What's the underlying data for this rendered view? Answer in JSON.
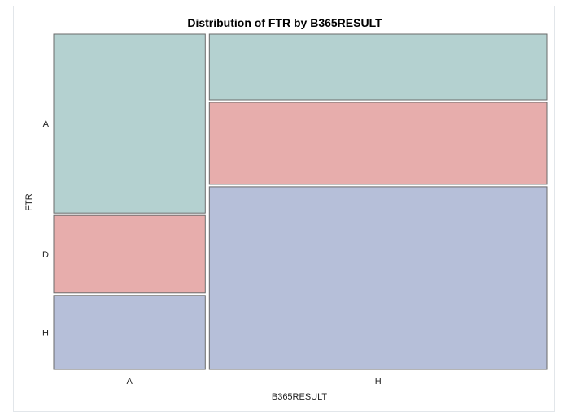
{
  "chart_data": {
    "type": "mosaic",
    "title": "Distribution of FTR by B365RESULT",
    "xlabel": "B365RESULT",
    "ylabel": "FTR",
    "x_categories": [
      "A",
      "H"
    ],
    "y_categories": [
      "A",
      "D",
      "H"
    ],
    "x_shares": [
      0.31,
      0.69
    ],
    "proportions": {
      "A": {
        "A": 0.541,
        "D": 0.235,
        "H": 0.224
      },
      "H": {
        "A": 0.199,
        "D": 0.248,
        "H": 0.553
      }
    },
    "colors": {
      "A": "#b4d1d0",
      "D": "#e7adac",
      "H": "#b6bfd9"
    }
  }
}
